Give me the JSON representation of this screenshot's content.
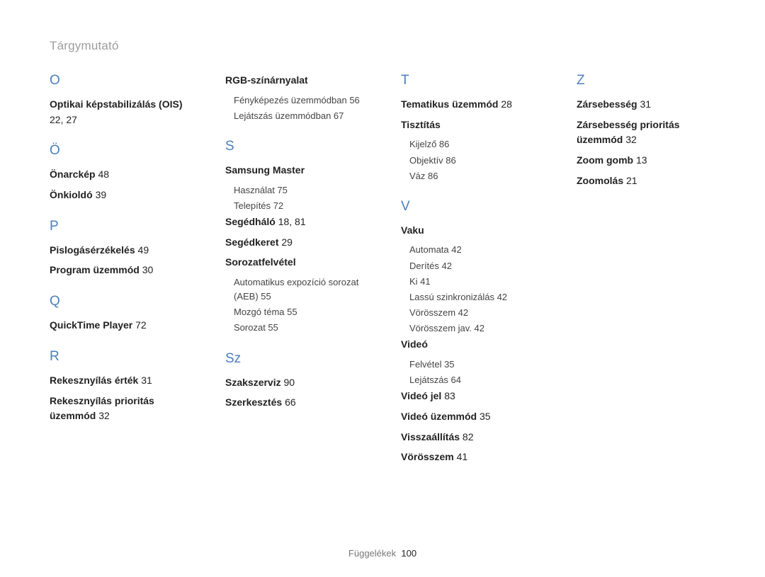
{
  "title": "Tárgymutató",
  "footer": {
    "label": "Függelékek",
    "page": "100"
  },
  "colors": {
    "letter": "#4a7fbf",
    "title": "#9d9d9d",
    "text": "#222222",
    "subtext": "#444444",
    "background": "#ffffff"
  },
  "columns": [
    {
      "sections": [
        {
          "letter": "O",
          "entries": [
            {
              "label": "Optikai képstabilizálás (OIS)",
              "pages": "22, 27"
            }
          ]
        },
        {
          "letter": "Ö",
          "entries": [
            {
              "label": "Önarckép",
              "pages": "48"
            },
            {
              "label": "Önkioldó",
              "pages": "39"
            }
          ]
        },
        {
          "letter": "P",
          "entries": [
            {
              "label": "Pislogásérzékelés",
              "pages": "49"
            },
            {
              "label": "Program üzemmód",
              "pages": "30"
            }
          ]
        },
        {
          "letter": "Q",
          "entries": [
            {
              "label": "QuickTime Player",
              "pages": "72"
            }
          ]
        },
        {
          "letter": "R",
          "entries": [
            {
              "label": "Rekesznyílás érték",
              "pages": "31"
            },
            {
              "label": "Rekesznyílás prioritás üzemmód",
              "pages": "32"
            }
          ]
        }
      ]
    },
    {
      "sections": [
        {
          "letter": "",
          "entries": [
            {
              "label": "RGB-színárnyalat",
              "sub": [
                {
                  "label": "Fényképezés üzemmódban",
                  "pages": "56"
                },
                {
                  "label": "Lejátszás üzemmódban",
                  "pages": "67"
                }
              ]
            }
          ]
        },
        {
          "letter": "S",
          "entries": [
            {
              "label": "Samsung Master",
              "sub": [
                {
                  "label": "Használat",
                  "pages": "75"
                },
                {
                  "label": "Telepítés",
                  "pages": "72"
                }
              ]
            },
            {
              "label": "Segédháló",
              "pages": "18, 81"
            },
            {
              "label": "Segédkeret",
              "pages": "29"
            },
            {
              "label": "Sorozatfelvétel",
              "sub": [
                {
                  "label": "Automatikus expozíció sorozat (AEB)",
                  "pages": "55"
                },
                {
                  "label": "Mozgó téma",
                  "pages": "55"
                },
                {
                  "label": "Sorozat",
                  "pages": "55"
                }
              ]
            }
          ]
        },
        {
          "letter": "Sz",
          "entries": [
            {
              "label": "Szakszerviz",
              "pages": "90"
            },
            {
              "label": "Szerkesztés",
              "pages": "66"
            }
          ]
        }
      ]
    },
    {
      "sections": [
        {
          "letter": "T",
          "entries": [
            {
              "label": "Tematikus üzemmód",
              "pages": "28"
            },
            {
              "label": "Tisztítás",
              "sub": [
                {
                  "label": "Kijelző",
                  "pages": "86"
                },
                {
                  "label": "Objektív",
                  "pages": "86"
                },
                {
                  "label": "Váz",
                  "pages": "86"
                }
              ]
            }
          ]
        },
        {
          "letter": "V",
          "entries": [
            {
              "label": "Vaku",
              "sub": [
                {
                  "label": "Automata",
                  "pages": "42"
                },
                {
                  "label": "Derítés",
                  "pages": "42"
                },
                {
                  "label": "Ki",
                  "pages": "41"
                },
                {
                  "label": "Lassú szinkronizálás",
                  "pages": "42"
                },
                {
                  "label": "Vörösszem",
                  "pages": "42"
                },
                {
                  "label": "Vörösszem jav.",
                  "pages": "42"
                }
              ]
            },
            {
              "label": "Videó",
              "sub": [
                {
                  "label": "Felvétel",
                  "pages": "35"
                },
                {
                  "label": "Lejátszás",
                  "pages": "64"
                }
              ]
            },
            {
              "label": "Videó jel",
              "pages": "83"
            },
            {
              "label": "Videó üzemmód",
              "pages": "35"
            },
            {
              "label": "Visszaállítás",
              "pages": "82"
            },
            {
              "label": "Vörösszem",
              "pages": "41"
            }
          ]
        }
      ]
    },
    {
      "sections": [
        {
          "letter": "Z",
          "entries": [
            {
              "label": "Zársebesség",
              "pages": "31"
            },
            {
              "label": "Zársebesség prioritás üzemmód",
              "pages": "32"
            },
            {
              "label": "Zoom gomb",
              "pages": "13"
            },
            {
              "label": "Zoomolás",
              "pages": "21"
            }
          ]
        }
      ]
    }
  ]
}
